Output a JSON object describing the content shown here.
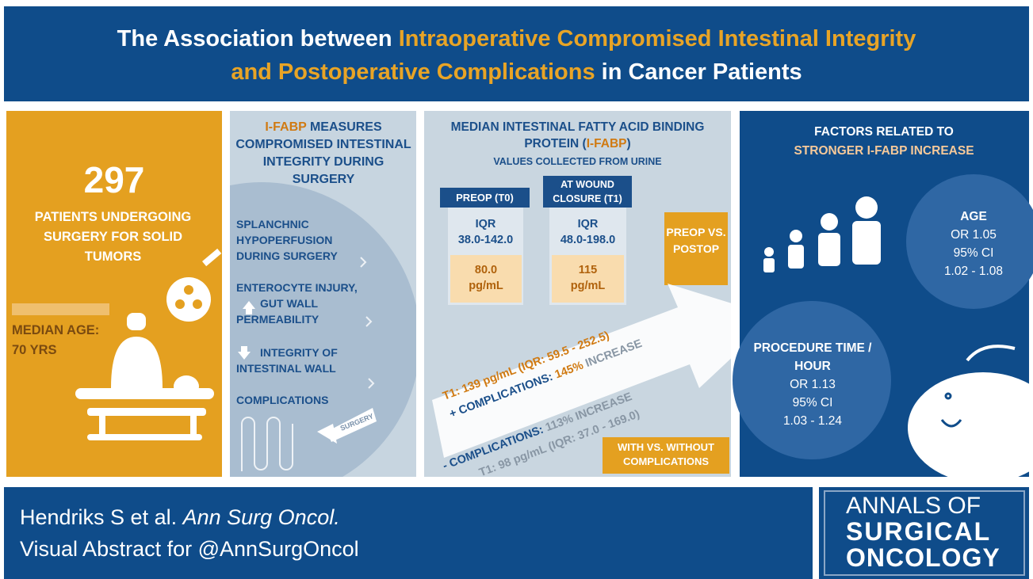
{
  "header": {
    "title_segments": [
      "The Association between ",
      "Intraoperative Compromised Intestinal Integrity",
      "and Postoperative Complications",
      " in Cancer Patients"
    ]
  },
  "population": {
    "count": 297,
    "description": "PATIENTS UNDERGOING SURGERY FOR SOLID TUMORS",
    "median_age_label": "MEDIAN AGE:",
    "median_age": "70 YRS"
  },
  "mechanism": {
    "heading_highlight": "I-FABP",
    "heading_rest": " MEASURES COMPROMISED INTESTINAL INTEGRITY DURING SURGERY",
    "steps": [
      "SPLANCHNIC HYPOPERFUSION",
      "DURING SURGERY",
      "ENTEROCYTE INJURY,",
      "GUT WALL",
      "PERMEABILITY",
      "INTEGRITY OF",
      "INTESTINAL WALL",
      "COMPLICATIONS"
    ],
    "surgery_label": "SURGERY"
  },
  "measurements": {
    "heading_start": "MEDIAN INTESTINAL FATTY ACID BINDING PROTEIN (",
    "heading_highlight": "I-FABP",
    "heading_end": ")",
    "subheading": "VALUES COLLECTED FROM URINE",
    "columns": [
      {
        "label": "PREOP (T0)",
        "iqr_label": "IQR",
        "iqr": "38.0-142.0",
        "median": "80.0",
        "unit": "pg/mL"
      },
      {
        "label": "AT WOUND CLOSURE (T1)",
        "iqr_label": "IQR",
        "iqr": "48.0-198.0",
        "median": "115",
        "unit": "pg/mL"
      }
    ],
    "comparison_1": "PREOP VS. POSTOP",
    "with_complications": {
      "t1": "T1: 139 pg/mL (IQR: 59.5 - 252.5)",
      "label": "+ COMPLICATIONS: ",
      "percent": "145%",
      "increase": " INCREASE"
    },
    "without_complications": {
      "label": "- COMPLICATIONS: ",
      "increase": "113% INCREASE",
      "t1": "T1: 98 pg/mL (IQR: 37.0 - 169.0)"
    },
    "comparison_2": "WITH VS. WITHOUT COMPLICATIONS"
  },
  "factors": {
    "heading": "FACTORS RELATED TO",
    "heading_highlight": "STRONGER I-FABP INCREASE",
    "items": [
      {
        "name": "AGE",
        "or": "OR 1.05",
        "ci_label": "95% CI",
        "ci": "1.02 - 1.08"
      },
      {
        "name": "PROCEDURE TIME / HOUR",
        "or": "OR 1.13",
        "ci_label": "95% CI",
        "ci": "1.03 - 1.24"
      }
    ]
  },
  "footer": {
    "citation": "Hendriks S et al. ",
    "journal": "Ann Surg Oncol.",
    "subtitle": "Visual Abstract for @AnnSurgOncol",
    "logo": [
      "ANNALS OF",
      "SURGICAL",
      "ONCOLOGY"
    ]
  }
}
